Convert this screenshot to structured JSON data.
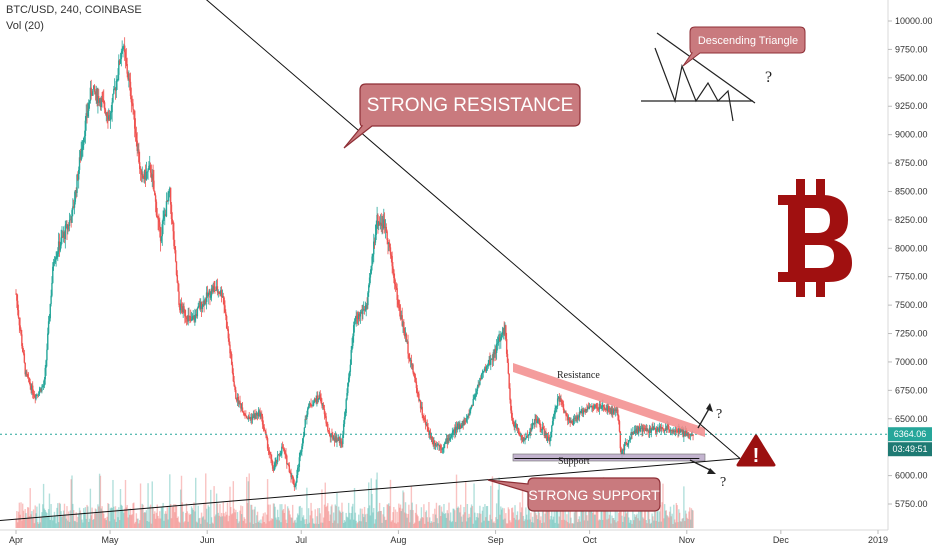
{
  "header": {
    "symbol_line": "BTC/USD, 240, COINBASE",
    "volume_line": "Vol (20)"
  },
  "colors": {
    "up": "#26a69a",
    "down": "#ef5350",
    "callout_fill": "#c97a7e",
    "callout_stroke": "#8e2f36",
    "resistance_band": "#f28b8b",
    "support_band": "#b9a7c7",
    "bitcoin": "#a01010",
    "warning": "#9b1010",
    "price_line": "#26a69a",
    "timer_bg": "#1e7a73"
  },
  "annotations": {
    "strong_resistance": "STRONG RESISTANCE",
    "strong_support": "STRONG SUPPORT",
    "descending_triangle": "Descending Triangle",
    "resistance": "Resistance",
    "support": "Support",
    "question": "?",
    "warning_glyph": "!",
    "bitcoin_icon": "bitcoin-icon"
  },
  "chart_data": {
    "type": "candlestick",
    "y_axis": {
      "ticks": [
        "10000.00",
        "9750.00",
        "9500.00",
        "9250.00",
        "9000.00",
        "8750.00",
        "8500.00",
        "8250.00",
        "8000.00",
        "7750.00",
        "7500.00",
        "7250.00",
        "7000.00",
        "6750.00",
        "6500.00",
        "6250.00",
        "6000.00",
        "5750.00"
      ],
      "range": [
        5600,
        10100
      ]
    },
    "x_axis": {
      "ticks": [
        "Apr",
        "May",
        "Jun",
        "Jul",
        "Aug",
        "Sep",
        "Oct",
        "Nov",
        "Dec",
        "2019"
      ]
    },
    "last_price": "6364.06",
    "countdown": "03:49:51",
    "price_path": [
      [
        "2018-04-01",
        7600
      ],
      [
        "2018-04-04",
        6900
      ],
      [
        "2018-04-07",
        6700
      ],
      [
        "2018-04-10",
        6800
      ],
      [
        "2018-04-13",
        7900
      ],
      [
        "2018-04-16",
        8100
      ],
      [
        "2018-04-19",
        8300
      ],
      [
        "2018-04-22",
        8900
      ],
      [
        "2018-04-25",
        9400
      ],
      [
        "2018-04-28",
        9300
      ],
      [
        "2018-05-01",
        9150
      ],
      [
        "2018-05-05",
        9800
      ],
      [
        "2018-05-08",
        9300
      ],
      [
        "2018-05-11",
        8600
      ],
      [
        "2018-05-14",
        8700
      ],
      [
        "2018-05-17",
        8100
      ],
      [
        "2018-05-20",
        8500
      ],
      [
        "2018-05-23",
        7500
      ],
      [
        "2018-05-27",
        7350
      ],
      [
        "2018-05-30",
        7500
      ],
      [
        "2018-06-03",
        7650
      ],
      [
        "2018-06-06",
        7600
      ],
      [
        "2018-06-10",
        6700
      ],
      [
        "2018-06-14",
        6500
      ],
      [
        "2018-06-18",
        6550
      ],
      [
        "2018-06-22",
        6050
      ],
      [
        "2018-06-25",
        6250
      ],
      [
        "2018-06-29",
        5900
      ],
      [
        "2018-07-03",
        6600
      ],
      [
        "2018-07-07",
        6700
      ],
      [
        "2018-07-10",
        6350
      ],
      [
        "2018-07-14",
        6300
      ],
      [
        "2018-07-18",
        7350
      ],
      [
        "2018-07-22",
        7500
      ],
      [
        "2018-07-25",
        8250
      ],
      [
        "2018-07-28",
        8200
      ],
      [
        "2018-08-01",
        7500
      ],
      [
        "2018-08-05",
        7000
      ],
      [
        "2018-08-09",
        6500
      ],
      [
        "2018-08-12",
        6300
      ],
      [
        "2018-08-15",
        6250
      ],
      [
        "2018-08-19",
        6400
      ],
      [
        "2018-08-23",
        6500
      ],
      [
        "2018-08-27",
        6850
      ],
      [
        "2018-08-31",
        7050
      ],
      [
        "2018-09-04",
        7300
      ],
      [
        "2018-09-06",
        6500
      ],
      [
        "2018-09-10",
        6300
      ],
      [
        "2018-09-14",
        6500
      ],
      [
        "2018-09-18",
        6300
      ],
      [
        "2018-09-21",
        6700
      ],
      [
        "2018-09-25",
        6450
      ],
      [
        "2018-09-30",
        6600
      ],
      [
        "2018-10-05",
        6600
      ],
      [
        "2018-10-10",
        6550
      ],
      [
        "2018-10-11",
        6200
      ],
      [
        "2018-10-15",
        6400
      ],
      [
        "2018-10-20",
        6400
      ],
      [
        "2018-10-26",
        6420
      ],
      [
        "2018-11-01",
        6360
      ],
      [
        "2018-11-03",
        6364
      ]
    ],
    "lines": [
      {
        "name": "strong-resistance-trendline",
        "points": [
          [
            "2018-05-27",
            10300
          ],
          [
            "2018-11-18",
            6150
          ]
        ]
      },
      {
        "name": "strong-support-trendline",
        "points": [
          [
            "2018-03-25",
            5600
          ],
          [
            "2018-11-18",
            6150
          ]
        ]
      },
      {
        "name": "short-support-line",
        "points": [
          [
            "2018-09-07",
            6150
          ],
          [
            "2018-11-05",
            6150
          ]
        ]
      }
    ]
  }
}
